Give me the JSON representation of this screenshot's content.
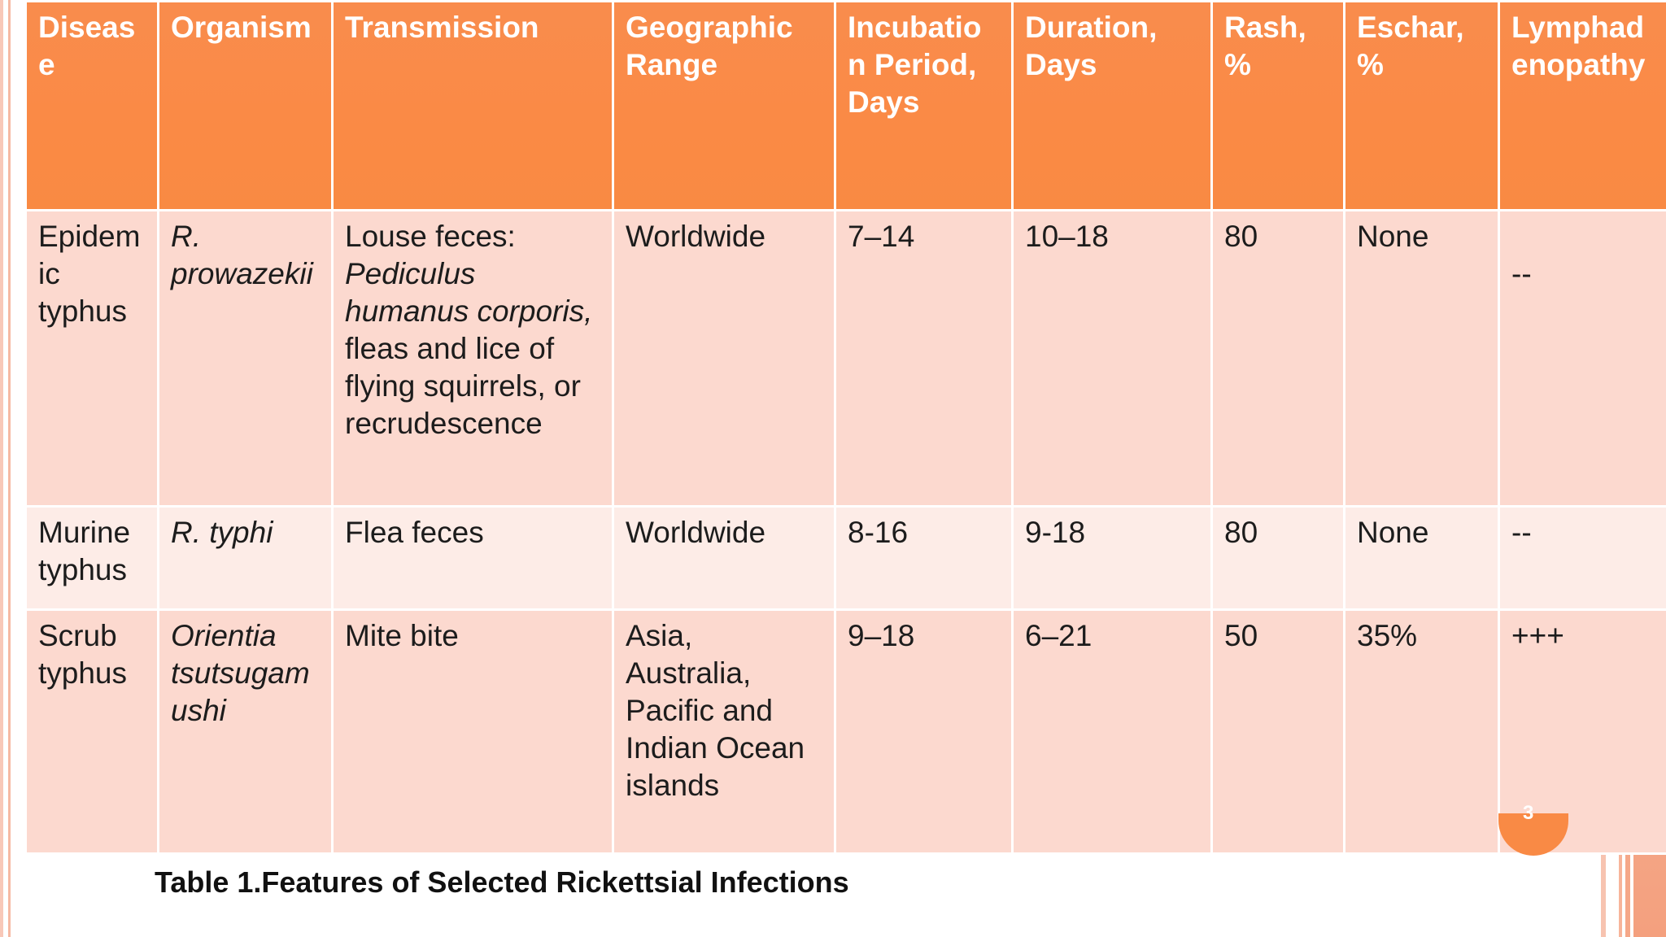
{
  "table": {
    "headers": [
      "Diseas e",
      "Organism",
      "Transmission",
      "Geographic Range",
      "Incubatio n Period, Days",
      "Duration, Days",
      "Rash, %",
      "Eschar, %",
      "Lymphad enopathy"
    ],
    "rows": [
      {
        "disease": "Epidem ic typhus",
        "organism": "R. prowazekii",
        "transmission_prefix": "Louse feces: ",
        "transmission_italic": "Pediculus humanus corporis,",
        "transmission_suffix": " fleas and lice of flying squirrels, or recrudescence",
        "range": "Worldwide",
        "incubation": "7–14",
        "duration": "10–18",
        "rash": "80",
        "eschar": "None",
        "lymph": "--"
      },
      {
        "disease": "Murine typhus",
        "organism": "R. typhi",
        "transmission": "Flea feces",
        "range": "Worldwide",
        "incubation": "8-16",
        "duration": "9-18",
        "rash": "80",
        "eschar": "None",
        "lymph": "--"
      },
      {
        "disease": "Scrub typhus",
        "organism": "Orientia tsutsugam ushi",
        "transmission": "Mite bite",
        "range": "Asia, Australia, Pacific and Indian Ocean islands",
        "incubation": "9–18",
        "duration": "6–21",
        "rash": "50",
        "eschar": "35%",
        "lymph": "+++"
      }
    ]
  },
  "caption": "Table 1.Features of Selected Rickettsial Infections",
  "slide_number": "3",
  "colors": {
    "header_orange": "#fa8a45",
    "row_light": "#fcd9cf",
    "row_lighter": "#fdece7"
  }
}
